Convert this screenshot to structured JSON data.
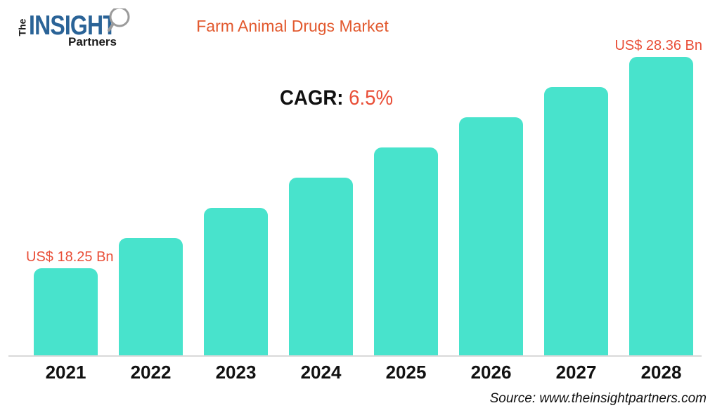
{
  "brand": {
    "the": "The",
    "insight": "INSIGHT",
    "partners": "Partners"
  },
  "title": "Farm Animal Drugs Market",
  "cagr": {
    "label": "CAGR:",
    "value": "6.5%"
  },
  "source": "Source: www.theinsightpartners.com",
  "colors": {
    "bar": "#48E3CC",
    "title_orange": "#E2592E",
    "label_red": "#E94F38",
    "logo_blue": "#2A6397",
    "axis_gray": "#D9D9D9",
    "text_black": "#111111"
  },
  "chart_data": {
    "type": "bar",
    "categories": [
      "2021",
      "2022",
      "2023",
      "2024",
      "2025",
      "2026",
      "2027",
      "2028"
    ],
    "values": [
      18.25,
      19.69,
      21.14,
      22.58,
      24.03,
      25.47,
      26.92,
      28.36
    ],
    "value_labels": {
      "2021": "US$ 18.25 Bn",
      "2028": "US$ 28.36 Bn"
    },
    "title": "Farm Animal Drugs Market",
    "annotation": "CAGR: 6.5%",
    "xlabel": "",
    "ylabel": "",
    "unit": "US$ Bn",
    "baseline_value": 14.05,
    "grid": false,
    "legend": false
  }
}
